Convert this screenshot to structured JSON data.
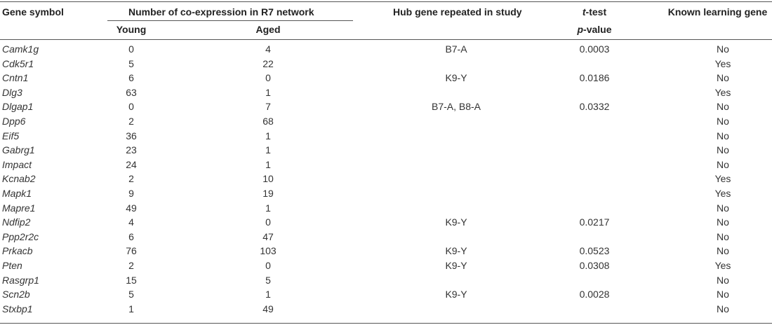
{
  "headers": {
    "gene_symbol": "Gene symbol",
    "coexpression": "Number of co-expression in R7 network",
    "young": "Young",
    "aged": "Aged",
    "hub": "Hub gene repeated in study",
    "ttest_t": "t",
    "ttest_rest": "-test",
    "pvalue_p": "p",
    "pvalue_rest": "-value",
    "known": "Known learning gene"
  },
  "rows": [
    {
      "gene": "Camk1g",
      "young": "0",
      "aged": "4",
      "hub": "B7-A",
      "p": "0.0003",
      "known": "No"
    },
    {
      "gene": "Cdk5r1",
      "young": "5",
      "aged": "22",
      "hub": "",
      "p": "",
      "known": "Yes"
    },
    {
      "gene": "Cntn1",
      "young": "6",
      "aged": "0",
      "hub": "K9-Y",
      "p": "0.0186",
      "known": "No"
    },
    {
      "gene": "Dlg3",
      "young": "63",
      "aged": "1",
      "hub": "",
      "p": "",
      "known": "Yes"
    },
    {
      "gene": "Dlgap1",
      "young": "0",
      "aged": "7",
      "hub": "B7-A, B8-A",
      "p": "0.0332",
      "known": "No"
    },
    {
      "gene": "Dpp6",
      "young": "2",
      "aged": "68",
      "hub": "",
      "p": "",
      "known": "No"
    },
    {
      "gene": "Eif5",
      "young": "36",
      "aged": "1",
      "hub": "",
      "p": "",
      "known": "No"
    },
    {
      "gene": "Gabrg1",
      "young": "23",
      "aged": "1",
      "hub": "",
      "p": "",
      "known": "No"
    },
    {
      "gene": "Impact",
      "young": "24",
      "aged": "1",
      "hub": "",
      "p": "",
      "known": "No"
    },
    {
      "gene": "Kcnab2",
      "young": "2",
      "aged": "10",
      "hub": "",
      "p": "",
      "known": "Yes"
    },
    {
      "gene": "Mapk1",
      "young": "9",
      "aged": "19",
      "hub": "",
      "p": "",
      "known": "Yes"
    },
    {
      "gene": "Mapre1",
      "young": "49",
      "aged": "1",
      "hub": "",
      "p": "",
      "known": "No"
    },
    {
      "gene": "Ndfip2",
      "young": "4",
      "aged": "0",
      "hub": "K9-Y",
      "p": "0.0217",
      "known": "No"
    },
    {
      "gene": "Ppp2r2c",
      "young": "6",
      "aged": "47",
      "hub": "",
      "p": "",
      "known": "No"
    },
    {
      "gene": "Prkacb",
      "young": "76",
      "aged": "103",
      "hub": "K9-Y",
      "p": "0.0523",
      "known": "No"
    },
    {
      "gene": "Pten",
      "young": "2",
      "aged": "0",
      "hub": "K9-Y",
      "p": "0.0308",
      "known": "Yes"
    },
    {
      "gene": "Rasgrp1",
      "young": "15",
      "aged": "5",
      "hub": "",
      "p": "",
      "known": "No"
    },
    {
      "gene": "Scn2b",
      "young": "5",
      "aged": "1",
      "hub": "K9-Y",
      "p": "0.0028",
      "known": "No"
    },
    {
      "gene": "Stxbp1",
      "young": "1",
      "aged": "49",
      "hub": "",
      "p": "",
      "known": "No"
    }
  ]
}
